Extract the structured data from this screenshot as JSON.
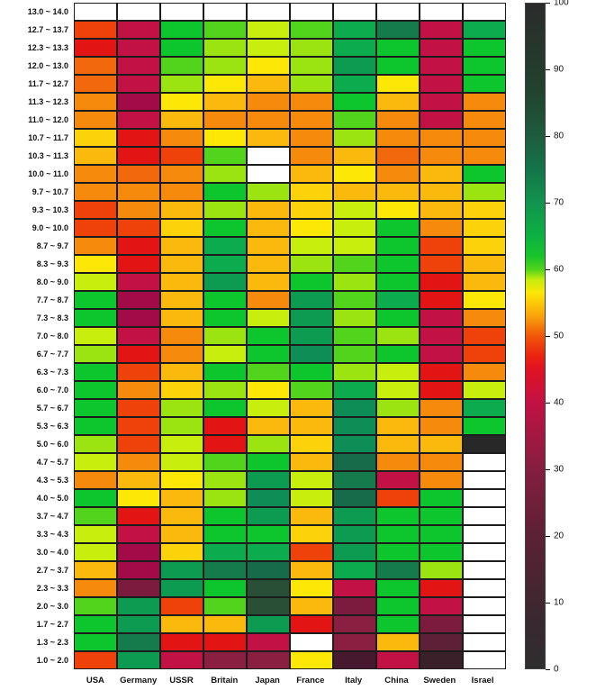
{
  "chart_data": {
    "type": "heatmap",
    "title": "",
    "xlabel": "",
    "ylabel": "",
    "x_categories": [
      "USA",
      "Germany",
      "USSR",
      "Britain",
      "Japan",
      "France",
      "Italy",
      "China",
      "Sweden",
      "Israel"
    ],
    "y_categories": [
      "13.0 ~ 14.0",
      "12.7 ~ 13.7",
      "12.3 ~ 13.3",
      "12.0 ~ 13.0",
      "11.7 ~ 12.7",
      "11.3 ~ 12.3",
      "11.0 ~ 12.0",
      "10.7 ~ 11.7",
      "10.3 ~ 11.3",
      "10.0 ~ 11.0",
      "9.7 ~ 10.7",
      "9.3 ~ 10.3",
      "9.0 ~ 10.0",
      "8.7 ~ 9.7",
      "8.3 ~ 9.3",
      "8.0 ~ 9.0",
      "7.7 ~ 8.7",
      "7.3 ~ 8.3",
      "7.0 ~ 8.0",
      "6.7 ~ 7.7",
      "6.3 ~ 7.3",
      "6.0 ~ 7.0",
      "5.7 ~ 6.7",
      "5.3 ~ 6.3",
      "5.0 ~ 6.0",
      "4.7 ~ 5.7",
      "4.3 ~ 5.3",
      "4.0 ~ 5.0",
      "3.7 ~ 4.7",
      "3.3 ~ 4.3",
      "3.0 ~ 4.0",
      "2.7 ~ 3.7",
      "2.3 ~ 3.3",
      "2.0 ~ 3.0",
      "1.7 ~ 2.7",
      "1.3 ~ 2.3",
      "1.0 ~ 2.0"
    ],
    "palette": {
      "W": {
        "color": "#ffffff",
        "value": null
      },
      "BK": {
        "color": "#282828",
        "value": 0
      },
      "M0": {
        "color": "#3a2029",
        "value": 7
      },
      "M1": {
        "color": "#47192e",
        "value": 11
      },
      "M2": {
        "color": "#5e2036",
        "value": 20
      },
      "M3": {
        "color": "#7c1b3d",
        "value": 27
      },
      "DC": {
        "color": "#8b1f41",
        "value": 30
      },
      "C2": {
        "color": "#a30b48",
        "value": 36
      },
      "C": {
        "color": "#c21144",
        "value": 41
      },
      "R": {
        "color": "#e21414",
        "value": 46
      },
      "OR": {
        "color": "#ee420a",
        "value": 49
      },
      "DO": {
        "color": "#f2690d",
        "value": 51
      },
      "O": {
        "color": "#f68a0d",
        "value": 52
      },
      "G1": {
        "color": "#fbb90d",
        "value": 54
      },
      "GY": {
        "color": "#fcd30a",
        "value": 55.5
      },
      "Y": {
        "color": "#fde707",
        "value": 57
      },
      "LY": {
        "color": "#c8ee0d",
        "value": 58.5
      },
      "L": {
        "color": "#9ce411",
        "value": 59
      },
      "LG": {
        "color": "#52d41d",
        "value": 61
      },
      "G": {
        "color": "#0dc62e",
        "value": 63
      },
      "EG": {
        "color": "#0cab4e",
        "value": 67
      },
      "E": {
        "color": "#0d9b52",
        "value": 70
      },
      "TE": {
        "color": "#0e8d56",
        "value": 72
      },
      "DE": {
        "color": "#157a4c",
        "value": 75
      },
      "DT": {
        "color": "#176a4a",
        "value": 78
      },
      "VG": {
        "color": "#2a4f37",
        "value": 85
      }
    },
    "cells": [
      "W W W W W W W W W W",
      "OR C G LG LY LG EG DE C EG",
      "R C G L LY L EG G C G",
      "DO C LG L Y L E G C G",
      "DO C L Y G1 L EG Y C G",
      "O C2 Y G1 O O G G1 C O",
      "O C G1 O O O LG O C O",
      "GY R O Y G1 O L O O O",
      "G1 R OR LG W O G1 DO O O",
      "O DO O L W G1 Y O G1 G",
      "O O O G L GY G1 G1 G1 L",
      "OR O G1 L G1 GY LY Y G1 GY",
      "OR OR GY G G1 Y LY G O GY",
      "O R G1 EG G1 LY LY G OR GY",
      "Y R G1 EG G1 L LG G OR G1",
      "LY C G1 E G1 G L G R G1",
      "G C2 G1 G O E LG EG R Y",
      "G C2 G1 G LY E L G C O",
      "LY C O L G E LG L C OR",
      "L R O LY G TE LG G C OR",
      "G OR G1 G LG G L LY R O",
      "G O GY L Y LG EG LY R LY",
      "G OR L G LY G1 TE L O EG",
      "G OR L R G1 G1 TE G1 O G",
      "L OR LY R L GY TE G1 G1 BK",
      "LY O LY LG G G1 DT O O W",
      "O G1 Y L E LY DE C O W",
      "G Y G1 L TE LY DT OR G W",
      "LG R G1 G E G1 E G G W",
      "LY C G1 G G GY E G G W",
      "LY C2 GY EG EG OR E G G W",
      "G1 C2 E DE DT G1 EG DE L W",
      "O M3 E G VG Y C G R W",
      "LG E OR LG VG G1 M3 G C W",
      "G E G1 G1 E R DC G M3 W",
      "G DE R R C W DC G1 M2 W",
      "OR E C DC DC Y M1 C M0 W"
    ],
    "no_data_color": "#ffffff",
    "colorbar": {
      "min": 0,
      "max": 100,
      "ticks": [
        0,
        10,
        20,
        30,
        40,
        50,
        60,
        70,
        80,
        90,
        100
      ],
      "position": "right",
      "gradient_stops": [
        {
          "pct": 0,
          "color": "#2e2e2e"
        },
        {
          "pct": 5,
          "color": "#352930"
        },
        {
          "pct": 10,
          "color": "#3f2730"
        },
        {
          "pct": 20,
          "color": "#5c2134"
        },
        {
          "pct": 30,
          "color": "#851e40"
        },
        {
          "pct": 40,
          "color": "#c21144"
        },
        {
          "pct": 45,
          "color": "#df1323"
        },
        {
          "pct": 47,
          "color": "#ea2311"
        },
        {
          "pct": 50,
          "color": "#f1560a"
        },
        {
          "pct": 53,
          "color": "#f9a30b"
        },
        {
          "pct": 55,
          "color": "#fcc909"
        },
        {
          "pct": 56.5,
          "color": "#fde707"
        },
        {
          "pct": 58.5,
          "color": "#c3ec0e"
        },
        {
          "pct": 60,
          "color": "#52d41d"
        },
        {
          "pct": 62,
          "color": "#19c32b"
        },
        {
          "pct": 65,
          "color": "#0cb141"
        },
        {
          "pct": 70,
          "color": "#12944f"
        },
        {
          "pct": 75,
          "color": "#147549"
        },
        {
          "pct": 80,
          "color": "#1e5c3d"
        },
        {
          "pct": 87,
          "color": "#22422e"
        },
        {
          "pct": 100,
          "color": "#2b2b2b"
        }
      ]
    },
    "grid_lines": {
      "color": "#1c1c1c",
      "on": true
    },
    "legend": "none"
  }
}
